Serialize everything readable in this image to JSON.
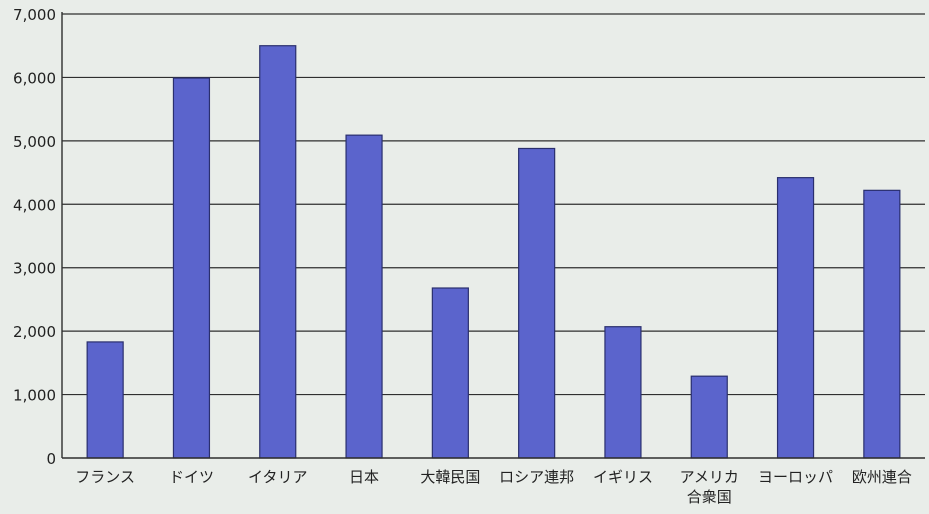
{
  "chart_data": {
    "type": "bar",
    "categories": [
      [
        "フランス"
      ],
      [
        "ドイツ"
      ],
      [
        "イタリア"
      ],
      [
        "日本"
      ],
      [
        "大韓民国"
      ],
      [
        "ロシア連邦"
      ],
      [
        "イギリス"
      ],
      [
        "アメリカ",
        "合衆国"
      ],
      [
        "ヨーロッパ"
      ],
      [
        "欧州連合"
      ]
    ],
    "values": [
      1830,
      5990,
      6500,
      5090,
      2680,
      4880,
      2070,
      1290,
      4420,
      4220
    ],
    "ylim": [
      0,
      7000
    ],
    "yticks": [
      "0",
      "1,000",
      "2,000",
      "3,000",
      "4,000",
      "5,000",
      "6,000",
      "7,000"
    ],
    "ytick_values": [
      0,
      1000,
      2000,
      3000,
      4000,
      5000,
      6000,
      7000
    ],
    "grid": true,
    "title": "",
    "xlabel": "",
    "ylabel": "",
    "colors": {
      "bar": "#5b64cc",
      "bar_edge": "#2a2f6e",
      "grid": "#2f2f2f",
      "background": "#e9ede9"
    }
  }
}
